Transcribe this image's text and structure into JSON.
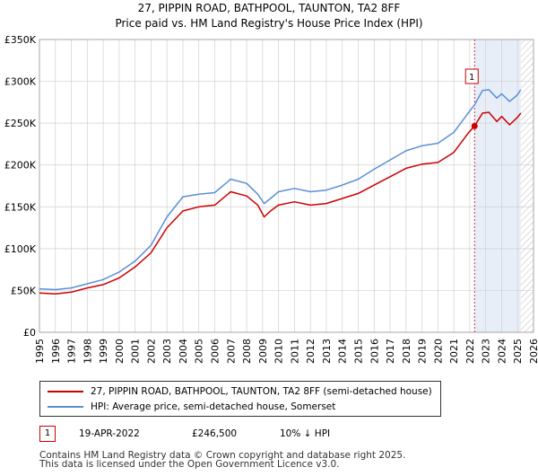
{
  "chart_data": {
    "type": "line",
    "title": "27, PIPPIN ROAD, BATHPOOL, TAUNTON, TA2 8FF",
    "subtitle": "Price paid vs. HM Land Registry's House Price Index (HPI)",
    "xlabel": "",
    "ylabel": "",
    "xlim": [
      1995,
      2026
    ],
    "ylim": [
      0,
      350000
    ],
    "x_ticks": [
      "1995",
      "1996",
      "1997",
      "1998",
      "1999",
      "2000",
      "2001",
      "2002",
      "2003",
      "2004",
      "2005",
      "2006",
      "2007",
      "2008",
      "2009",
      "2010",
      "2011",
      "2012",
      "2013",
      "2014",
      "2015",
      "2016",
      "2017",
      "2018",
      "2019",
      "2020",
      "2021",
      "2022",
      "2023",
      "2024",
      "2025",
      "2026"
    ],
    "y_ticks": [
      {
        "value": 0,
        "label": "£0"
      },
      {
        "value": 50000,
        "label": "£50K"
      },
      {
        "value": 100000,
        "label": "£100K"
      },
      {
        "value": 150000,
        "label": "£150K"
      },
      {
        "value": 200000,
        "label": "£200K"
      },
      {
        "value": 250000,
        "label": "£250K"
      },
      {
        "value": 300000,
        "label": "£300K"
      },
      {
        "value": 350000,
        "label": "£350K"
      }
    ],
    "grid": true,
    "shaded_span": {
      "from": 2022.3,
      "to": 2025.2,
      "color": "#e8eef8"
    },
    "hatched_span": {
      "from": 2025.2,
      "to": 2026
    },
    "series": [
      {
        "name": "27, PIPPIN ROAD, BATHPOOL, TAUNTON, TA2 8FF (semi-detached house)",
        "color": "#cc0000",
        "points": [
          [
            1995,
            47000
          ],
          [
            1996,
            46000
          ],
          [
            1997,
            48000
          ],
          [
            1998,
            53000
          ],
          [
            1999,
            57000
          ],
          [
            2000,
            65000
          ],
          [
            2001,
            78000
          ],
          [
            2002,
            95000
          ],
          [
            2003,
            125000
          ],
          [
            2004,
            145000
          ],
          [
            2005,
            150000
          ],
          [
            2006,
            152000
          ],
          [
            2007,
            168000
          ],
          [
            2008,
            163000
          ],
          [
            2008.7,
            152000
          ],
          [
            2009.1,
            138000
          ],
          [
            2009.5,
            145000
          ],
          [
            2010,
            152000
          ],
          [
            2011,
            156000
          ],
          [
            2012,
            152000
          ],
          [
            2013,
            154000
          ],
          [
            2014,
            160000
          ],
          [
            2015,
            166000
          ],
          [
            2016,
            176000
          ],
          [
            2017,
            186000
          ],
          [
            2018,
            196000
          ],
          [
            2019,
            201000
          ],
          [
            2020,
            203000
          ],
          [
            2021,
            215000
          ],
          [
            2021.9,
            238000
          ],
          [
            2022.3,
            246500
          ],
          [
            2022.8,
            262000
          ],
          [
            2023.2,
            263000
          ],
          [
            2023.7,
            252000
          ],
          [
            2024,
            258000
          ],
          [
            2024.5,
            248000
          ],
          [
            2025,
            257000
          ],
          [
            2025.2,
            262000
          ]
        ]
      },
      {
        "name": "HPI: Average price, semi-detached house, Somerset",
        "color": "#5b8fd6",
        "points": [
          [
            1995,
            52000
          ],
          [
            1996,
            51000
          ],
          [
            1997,
            53000
          ],
          [
            1998,
            58000
          ],
          [
            1999,
            63000
          ],
          [
            2000,
            72000
          ],
          [
            2001,
            85000
          ],
          [
            2002,
            104000
          ],
          [
            2003,
            138000
          ],
          [
            2004,
            162000
          ],
          [
            2005,
            165000
          ],
          [
            2006,
            167000
          ],
          [
            2007,
            183000
          ],
          [
            2008,
            178000
          ],
          [
            2008.7,
            165000
          ],
          [
            2009.1,
            154000
          ],
          [
            2009.5,
            160000
          ],
          [
            2010,
            168000
          ],
          [
            2011,
            172000
          ],
          [
            2012,
            168000
          ],
          [
            2013,
            170000
          ],
          [
            2014,
            176000
          ],
          [
            2015,
            183000
          ],
          [
            2016,
            195000
          ],
          [
            2017,
            206000
          ],
          [
            2018,
            217000
          ],
          [
            2019,
            223000
          ],
          [
            2020,
            226000
          ],
          [
            2021,
            239000
          ],
          [
            2021.9,
            262000
          ],
          [
            2022.3,
            272000
          ],
          [
            2022.8,
            289000
          ],
          [
            2023.2,
            290000
          ],
          [
            2023.7,
            280000
          ],
          [
            2024,
            285000
          ],
          [
            2024.5,
            276000
          ],
          [
            2025,
            284000
          ],
          [
            2025.2,
            290000
          ]
        ]
      }
    ],
    "markers": [
      {
        "label": "1",
        "x": 2022.3,
        "y": 246500,
        "color": "#cc0000"
      }
    ]
  },
  "legend": {
    "items": [
      {
        "label": "27, PIPPIN ROAD, BATHPOOL, TAUNTON, TA2 8FF (semi-detached house)",
        "color": "#cc0000"
      },
      {
        "label": "HPI: Average price, semi-detached house, Somerset",
        "color": "#5b8fd6"
      }
    ]
  },
  "annotations": [
    {
      "number": "1",
      "date": "19-APR-2022",
      "price": "£246,500",
      "hpi_diff": "10% ↓ HPI"
    }
  ],
  "footer": {
    "line1": "Contains HM Land Registry data © Crown copyright and database right 2025.",
    "line2": "This data is licensed under the Open Government Licence v3.0."
  }
}
